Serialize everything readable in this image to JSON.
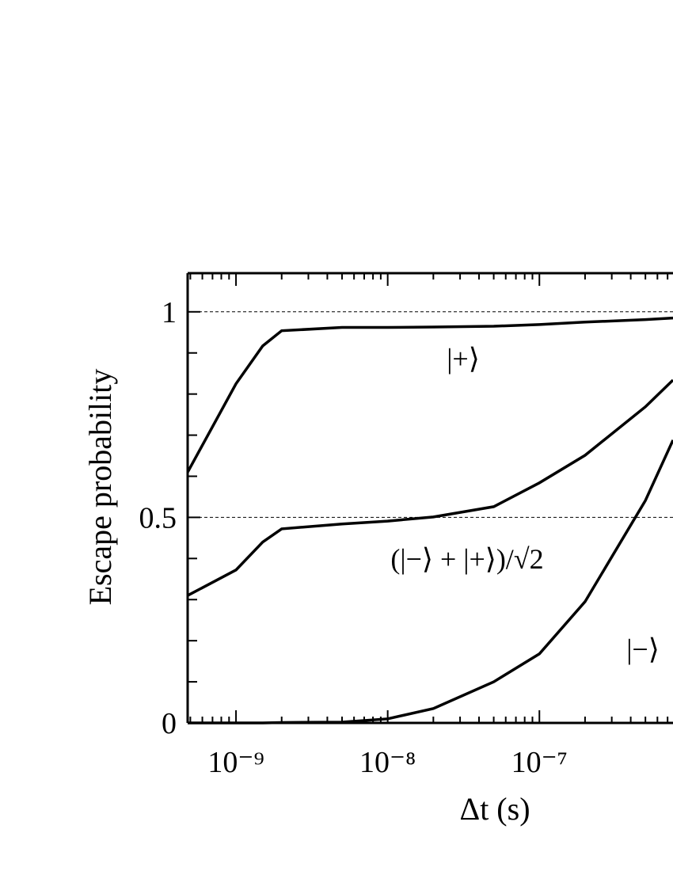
{
  "chart_data": {
    "type": "line",
    "xlabel": "Δt (s)",
    "ylabel": "Escape probability",
    "xscale": "log",
    "xlim": [
      4.8e-10,
      7.6e-07
    ],
    "ylim": [
      0,
      1.094
    ],
    "xticks": [
      {
        "value": 1e-09,
        "label": "10⁻⁹"
      },
      {
        "value": 1e-08,
        "label": "10⁻⁸"
      },
      {
        "value": 1e-07,
        "label": "10⁻⁷"
      }
    ],
    "yticks": [
      0,
      0.5,
      1
    ],
    "yminor_ticks": [
      0.1,
      0.2,
      0.3,
      0.4,
      0.6,
      0.7,
      0.8,
      0.9
    ],
    "hlines": [
      0.5,
      1
    ],
    "x": [
      4.8e-10,
      1e-09,
      1.5e-09,
      2e-09,
      5e-09,
      1e-08,
      2e-08,
      5e-08,
      1e-07,
      2e-07,
      5e-07,
      7.6e-07
    ],
    "series": [
      {
        "name": "|+⟩",
        "color": "#000000",
        "values": [
          0.61,
          0.825,
          0.917,
          0.954,
          0.962,
          0.962,
          0.963,
          0.965,
          0.969,
          0.975,
          0.981,
          0.985
        ]
      },
      {
        "name": "(|−⟩ + |+⟩)/√2",
        "color": "#000000",
        "values": [
          0.31,
          0.372,
          0.44,
          0.472,
          0.484,
          0.491,
          0.501,
          0.526,
          0.584,
          0.651,
          0.769,
          0.834
        ]
      },
      {
        "name": "|−⟩",
        "color": "#000000",
        "values": [
          0,
          0,
          0,
          0.001,
          0.002,
          0.01,
          0.035,
          0.1,
          0.168,
          0.295,
          0.541,
          0.688
        ]
      }
    ]
  }
}
